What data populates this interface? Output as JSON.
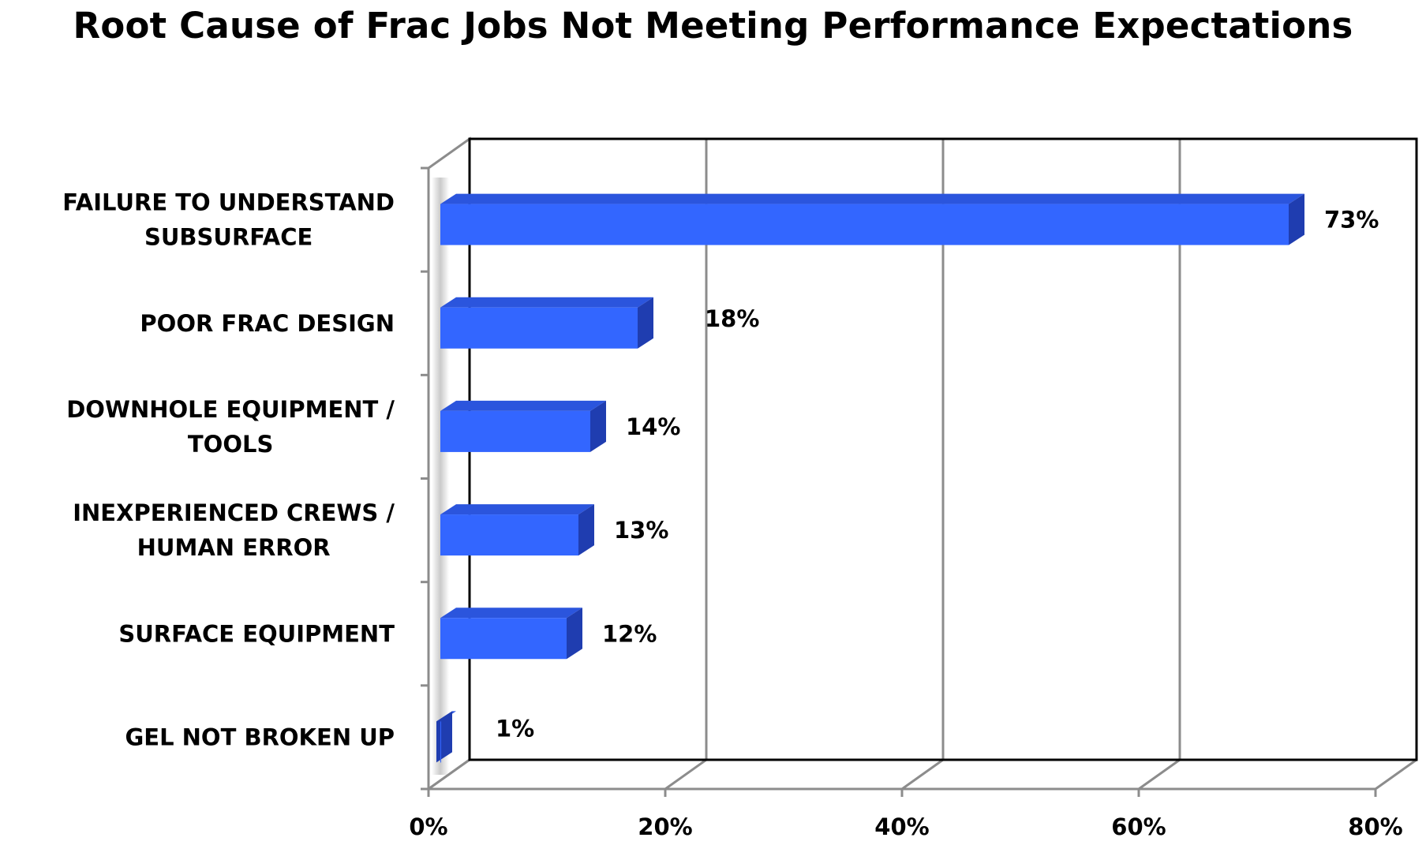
{
  "chart_data": {
    "type": "bar",
    "orientation": "horizontal",
    "style": "3d",
    "title": "Root Cause of Frac Jobs Not Meeting Performance Expectations",
    "xlabel": "",
    "ylabel": "",
    "categories": [
      [
        "FAILURE TO UNDERSTAND",
        "SUBSURFACE"
      ],
      [
        "POOR FRAC DESIGN"
      ],
      [
        "DOWNHOLE EQUIPMENT /",
        "TOOLS"
      ],
      [
        "INEXPERIENCED CREWS /",
        "HUMAN ERROR"
      ],
      [
        "SURFACE EQUIPMENT"
      ],
      [
        "GEL NOT BROKEN UP"
      ]
    ],
    "values": [
      73,
      18,
      14,
      13,
      12,
      1
    ],
    "data_labels": [
      "73%",
      "18%",
      "14%",
      "13%",
      "12%",
      "1%"
    ],
    "xlim": [
      0,
      80
    ],
    "xticks": [
      0,
      20,
      40,
      60,
      80
    ],
    "xtick_labels": [
      "0%",
      "20%",
      "40%",
      "60%",
      "80%"
    ],
    "grid": true,
    "legend": "none",
    "colors": {
      "bar_front": "#3366ff",
      "bar_top": "#2b55dd",
      "bar_side": "#1f3db0",
      "grid": "#8c8c8c",
      "frame": "#000000"
    }
  }
}
